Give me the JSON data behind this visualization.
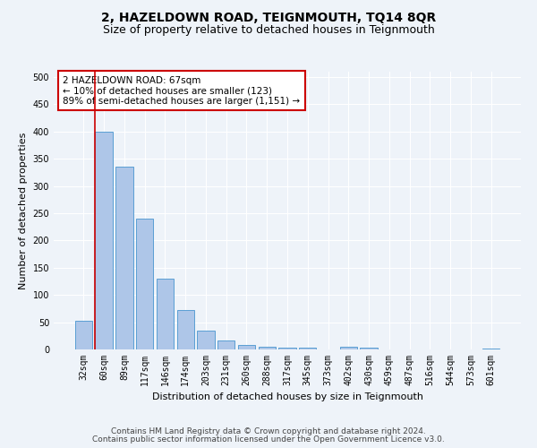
{
  "title": "2, HAZELDOWN ROAD, TEIGNMOUTH, TQ14 8QR",
  "subtitle": "Size of property relative to detached houses in Teignmouth",
  "xlabel": "Distribution of detached houses by size in Teignmouth",
  "ylabel": "Number of detached properties",
  "footer_line1": "Contains HM Land Registry data © Crown copyright and database right 2024.",
  "footer_line2": "Contains public sector information licensed under the Open Government Licence v3.0.",
  "categories": [
    "32sqm",
    "60sqm",
    "89sqm",
    "117sqm",
    "146sqm",
    "174sqm",
    "203sqm",
    "231sqm",
    "260sqm",
    "288sqm",
    "317sqm",
    "345sqm",
    "373sqm",
    "402sqm",
    "430sqm",
    "459sqm",
    "487sqm",
    "516sqm",
    "544sqm",
    "573sqm",
    "601sqm"
  ],
  "values": [
    52,
    400,
    335,
    240,
    130,
    72,
    35,
    17,
    8,
    5,
    4,
    3,
    0,
    5,
    4,
    0,
    0,
    0,
    0,
    0,
    2
  ],
  "bar_color": "#aec6e8",
  "bar_edge_color": "#5a9fd4",
  "highlight_color": "#cc0000",
  "highlight_index": 1,
  "annotation_text": "2 HAZELDOWN ROAD: 67sqm\n← 10% of detached houses are smaller (123)\n89% of semi-detached houses are larger (1,151) →",
  "annotation_box_color": "#ffffff",
  "annotation_box_edge": "#cc0000",
  "ylim": [
    0,
    510
  ],
  "yticks": [
    0,
    50,
    100,
    150,
    200,
    250,
    300,
    350,
    400,
    450,
    500
  ],
  "bg_color": "#eef3f9",
  "plot_bg_color": "#eef3f9",
  "grid_color": "#ffffff",
  "title_fontsize": 10,
  "subtitle_fontsize": 9,
  "axis_label_fontsize": 8,
  "tick_fontsize": 7,
  "annotation_fontsize": 7.5,
  "footer_fontsize": 6.5
}
